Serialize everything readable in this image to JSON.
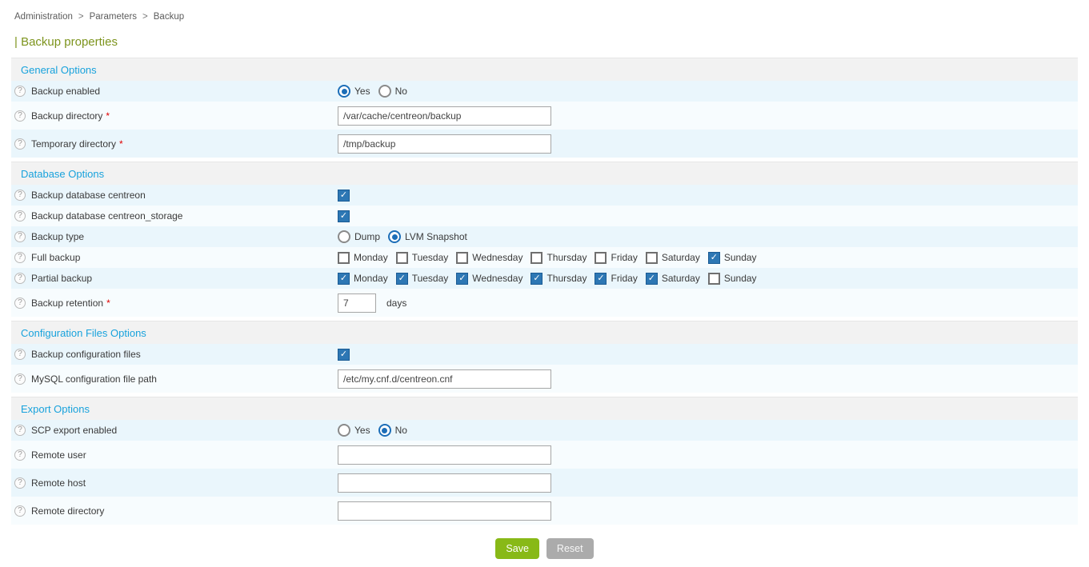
{
  "breadcrumb": {
    "separator": ">",
    "items": [
      "Administration",
      "Parameters",
      "Backup"
    ]
  },
  "page_title": "| Backup properties",
  "required_marker": "*",
  "help_icon_glyph": "?",
  "check_glyph": "✓",
  "sections": [
    {
      "title": "General Options",
      "rows": [
        {
          "label": "Backup enabled",
          "required": false,
          "type": "radio-group",
          "options": [
            {
              "label": "Yes",
              "selected": true
            },
            {
              "label": "No",
              "selected": false
            }
          ]
        },
        {
          "label": "Backup directory",
          "required": true,
          "type": "text",
          "value": "/var/cache/centreon/backup",
          "placeholder": ""
        },
        {
          "label": "Temporary directory",
          "required": true,
          "type": "text",
          "value": "/tmp/backup",
          "placeholder": ""
        }
      ]
    },
    {
      "title": "Database Options",
      "rows": [
        {
          "label": "Backup database centreon",
          "required": false,
          "type": "checkbox",
          "checked": true
        },
        {
          "label": "Backup database centreon_storage",
          "required": false,
          "type": "checkbox",
          "checked": true
        },
        {
          "label": "Backup type",
          "required": false,
          "type": "radio-group",
          "options": [
            {
              "label": "Dump",
              "selected": false
            },
            {
              "label": "LVM Snapshot",
              "selected": true
            }
          ]
        },
        {
          "label": "Full backup",
          "required": false,
          "type": "checkbox-group",
          "items": [
            {
              "label": "Monday",
              "checked": false
            },
            {
              "label": "Tuesday",
              "checked": false
            },
            {
              "label": "Wednesday",
              "checked": false
            },
            {
              "label": "Thursday",
              "checked": false
            },
            {
              "label": "Friday",
              "checked": false
            },
            {
              "label": "Saturday",
              "checked": false
            },
            {
              "label": "Sunday",
              "checked": true
            }
          ]
        },
        {
          "label": "Partial backup",
          "required": false,
          "type": "checkbox-group",
          "items": [
            {
              "label": "Monday",
              "checked": true
            },
            {
              "label": "Tuesday",
              "checked": true
            },
            {
              "label": "Wednesday",
              "checked": true
            },
            {
              "label": "Thursday",
              "checked": true
            },
            {
              "label": "Friday",
              "checked": true
            },
            {
              "label": "Saturday",
              "checked": true
            },
            {
              "label": "Sunday",
              "checked": false
            }
          ]
        },
        {
          "label": "Backup retention",
          "required": true,
          "type": "text",
          "value": "7",
          "small": true,
          "suffix": "days",
          "placeholder": ""
        }
      ]
    },
    {
      "title": "Configuration Files Options",
      "rows": [
        {
          "label": "Backup configuration files",
          "required": false,
          "type": "checkbox",
          "checked": true
        },
        {
          "label": "MySQL configuration file path",
          "required": false,
          "type": "text",
          "value": "/etc/my.cnf.d/centreon.cnf",
          "placeholder": ""
        }
      ]
    },
    {
      "title": "Export Options",
      "rows": [
        {
          "label": "SCP export enabled",
          "required": false,
          "type": "radio-group",
          "options": [
            {
              "label": "Yes",
              "selected": false
            },
            {
              "label": "No",
              "selected": true
            }
          ]
        },
        {
          "label": "Remote user",
          "required": false,
          "type": "text",
          "value": "",
          "placeholder": ""
        },
        {
          "label": "Remote host",
          "required": false,
          "type": "text",
          "value": "",
          "placeholder": ""
        },
        {
          "label": "Remote directory",
          "required": false,
          "type": "text",
          "value": "",
          "placeholder": ""
        }
      ]
    }
  ],
  "buttons": {
    "save": "Save",
    "reset": "Reset"
  },
  "colors": {
    "section_title_blue": "#18a2dc",
    "page_title_green": "#7d941d",
    "checkbox_blue": "#2d77b4",
    "radio_blue": "#1c6eb8",
    "row_odd_bg": "#eaf6fc",
    "row_even_bg": "#f7fcfe",
    "section_bar_bg": "#f2f2f2",
    "save_green": "#88b917",
    "reset_gray": "#ababab",
    "required_red": "#e00000"
  }
}
